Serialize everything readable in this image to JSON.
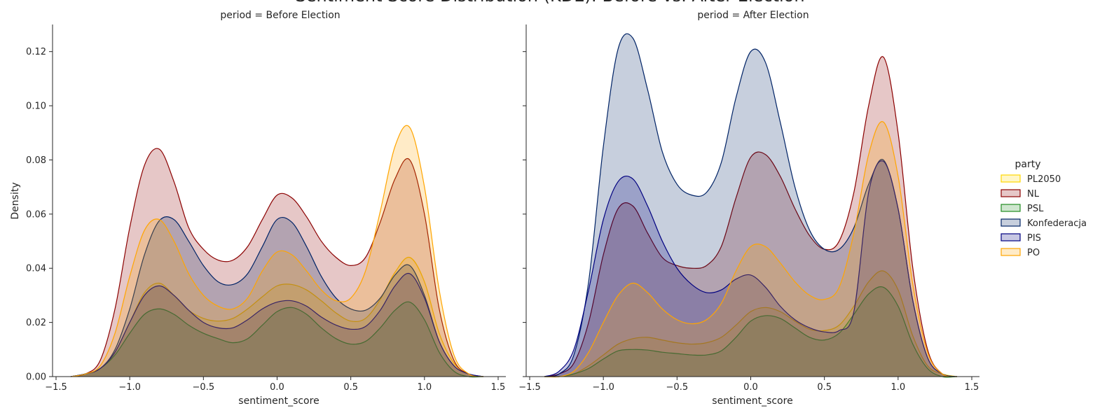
{
  "figure": {
    "title": "Sentiment Score Distribution (KDE): Before vs. After Election"
  },
  "legend": {
    "title": "party",
    "placement": "right",
    "entries": [
      {
        "name": "PL2050",
        "color": "#FFD700"
      },
      {
        "name": "NL",
        "color": "#8B0000"
      },
      {
        "name": "PSL",
        "color": "#228B22"
      },
      {
        "name": "Konfederacja",
        "color": "#002366"
      },
      {
        "name": "PIS",
        "color": "#000080"
      },
      {
        "name": "PO",
        "color": "#FFA500"
      }
    ]
  },
  "chart_data": [
    {
      "type": "area",
      "subtype": "kde",
      "title": "period = Before Election",
      "xlabel": "sentiment_score",
      "ylabel": "Density",
      "xlim": [
        -1.5,
        1.5
      ],
      "ylim": [
        0,
        0.13
      ],
      "xticks": [
        "−1.5",
        "−1.0",
        "−0.5",
        "0.0",
        "0.5",
        "1.0",
        "1.5"
      ],
      "yticks": [
        "0.00",
        "0.02",
        "0.04",
        "0.06",
        "0.08",
        "0.10",
        "0.12"
      ],
      "grid": false,
      "x": [
        -1.4,
        -1.3,
        -1.2,
        -1.1,
        -1.0,
        -0.9,
        -0.8,
        -0.7,
        -0.6,
        -0.5,
        -0.4,
        -0.3,
        -0.2,
        -0.1,
        0.0,
        0.1,
        0.2,
        0.3,
        0.4,
        0.5,
        0.6,
        0.7,
        0.8,
        0.9,
        1.0,
        1.1,
        1.2,
        1.3,
        1.4
      ],
      "series": [
        {
          "name": "PL2050",
          "color": "#FFD700",
          "values": [
            0.0,
            0.001,
            0.003,
            0.009,
            0.02,
            0.031,
            0.0345,
            0.03,
            0.0245,
            0.0215,
            0.0205,
            0.0215,
            0.025,
            0.0295,
            0.0335,
            0.034,
            0.032,
            0.028,
            0.0235,
            0.0205,
            0.0215,
            0.0285,
            0.0385,
            0.044,
            0.035,
            0.016,
            0.005,
            0.001,
            0.0
          ]
        },
        {
          "name": "NL",
          "color": "#8B0000",
          "values": [
            0.0,
            0.001,
            0.006,
            0.025,
            0.055,
            0.078,
            0.084,
            0.072,
            0.055,
            0.047,
            0.043,
            0.043,
            0.048,
            0.058,
            0.067,
            0.066,
            0.059,
            0.05,
            0.044,
            0.041,
            0.044,
            0.057,
            0.073,
            0.08,
            0.06,
            0.025,
            0.006,
            0.001,
            0.0
          ]
        },
        {
          "name": "PSL",
          "color": "#228B22",
          "values": [
            0.0,
            0.001,
            0.003,
            0.008,
            0.016,
            0.023,
            0.025,
            0.023,
            0.019,
            0.016,
            0.014,
            0.0125,
            0.014,
            0.019,
            0.024,
            0.0255,
            0.023,
            0.018,
            0.014,
            0.012,
            0.013,
            0.018,
            0.0245,
            0.0275,
            0.021,
            0.009,
            0.002,
            0.0,
            0.0
          ]
        },
        {
          "name": "Konfederacja",
          "color": "#002366",
          "values": [
            0.0,
            0.001,
            0.003,
            0.01,
            0.025,
            0.045,
            0.0575,
            0.058,
            0.05,
            0.041,
            0.035,
            0.034,
            0.038,
            0.048,
            0.058,
            0.057,
            0.048,
            0.037,
            0.029,
            0.025,
            0.0245,
            0.029,
            0.0375,
            0.041,
            0.03,
            0.013,
            0.004,
            0.001,
            0.0
          ]
        },
        {
          "name": "PIS",
          "color": "#000080",
          "values": [
            0.0,
            0.001,
            0.003,
            0.009,
            0.02,
            0.03,
            0.0335,
            0.03,
            0.0245,
            0.02,
            0.018,
            0.018,
            0.021,
            0.025,
            0.0275,
            0.028,
            0.026,
            0.022,
            0.019,
            0.0175,
            0.0185,
            0.0245,
            0.0335,
            0.038,
            0.029,
            0.013,
            0.004,
            0.001,
            0.0
          ]
        },
        {
          "name": "PO",
          "color": "#FFA500",
          "values": [
            0.0,
            0.001,
            0.004,
            0.016,
            0.037,
            0.054,
            0.058,
            0.05,
            0.038,
            0.03,
            0.026,
            0.025,
            0.029,
            0.039,
            0.046,
            0.045,
            0.039,
            0.032,
            0.028,
            0.029,
            0.039,
            0.061,
            0.085,
            0.092,
            0.07,
            0.032,
            0.008,
            0.001,
            0.0
          ]
        }
      ]
    },
    {
      "type": "area",
      "subtype": "kde",
      "title": "period = After Election",
      "xlabel": "sentiment_score",
      "ylabel": "",
      "xlim": [
        -1.5,
        1.5
      ],
      "ylim": [
        0,
        0.13
      ],
      "xticks": [
        "−1.5",
        "−1.0",
        "−0.5",
        "0.0",
        "0.5",
        "1.0",
        "1.5"
      ],
      "yticks": [],
      "grid": false,
      "x": [
        -1.4,
        -1.3,
        -1.2,
        -1.1,
        -1.0,
        -0.9,
        -0.8,
        -0.7,
        -0.6,
        -0.5,
        -0.4,
        -0.3,
        -0.2,
        -0.1,
        0.0,
        0.1,
        0.2,
        0.3,
        0.4,
        0.5,
        0.6,
        0.7,
        0.8,
        0.9,
        1.0,
        1.1,
        1.2,
        1.3,
        1.4
      ],
      "series": [
        {
          "name": "PL2050",
          "color": "#FFD700",
          "values": [
            0.0,
            0.0,
            0.001,
            0.004,
            0.008,
            0.012,
            0.014,
            0.0145,
            0.0135,
            0.0125,
            0.012,
            0.0125,
            0.0145,
            0.019,
            0.024,
            0.0255,
            0.024,
            0.0205,
            0.0175,
            0.017,
            0.019,
            0.026,
            0.035,
            0.039,
            0.032,
            0.015,
            0.004,
            0.001,
            0.0
          ]
        },
        {
          "name": "NL",
          "color": "#8B0000",
          "values": [
            0.0,
            0.001,
            0.005,
            0.02,
            0.045,
            0.062,
            0.063,
            0.053,
            0.044,
            0.041,
            0.04,
            0.041,
            0.048,
            0.066,
            0.081,
            0.082,
            0.074,
            0.062,
            0.052,
            0.047,
            0.05,
            0.068,
            0.1,
            0.118,
            0.09,
            0.04,
            0.01,
            0.001,
            0.0
          ]
        },
        {
          "name": "PSL",
          "color": "#228B22",
          "values": [
            0.0,
            0.0,
            0.001,
            0.003,
            0.0065,
            0.0095,
            0.01,
            0.0098,
            0.009,
            0.0085,
            0.008,
            0.008,
            0.0095,
            0.0145,
            0.0205,
            0.0225,
            0.0215,
            0.018,
            0.0145,
            0.0135,
            0.016,
            0.023,
            0.0305,
            0.033,
            0.026,
            0.012,
            0.003,
            0.0,
            0.0
          ]
        },
        {
          "name": "Konfederacja",
          "color": "#002366",
          "values": [
            0.0,
            0.001,
            0.008,
            0.035,
            0.085,
            0.121,
            0.125,
            0.106,
            0.083,
            0.071,
            0.067,
            0.068,
            0.079,
            0.103,
            0.12,
            0.116,
            0.094,
            0.07,
            0.054,
            0.047,
            0.047,
            0.055,
            0.071,
            0.08,
            0.062,
            0.028,
            0.007,
            0.001,
            0.0
          ]
        },
        {
          "name": "PIS",
          "color": "#000080",
          "values": [
            0.0,
            0.002,
            0.01,
            0.032,
            0.058,
            0.072,
            0.073,
            0.063,
            0.05,
            0.04,
            0.034,
            0.031,
            0.032,
            0.036,
            0.0375,
            0.033,
            0.026,
            0.021,
            0.018,
            0.0165,
            0.017,
            0.024,
            0.068,
            0.0795,
            0.062,
            0.028,
            0.007,
            0.001,
            0.0
          ]
        },
        {
          "name": "PO",
          "color": "#FFA500",
          "values": [
            0.0,
            0.0,
            0.002,
            0.009,
            0.02,
            0.03,
            0.0345,
            0.031,
            0.025,
            0.021,
            0.0195,
            0.021,
            0.027,
            0.039,
            0.048,
            0.048,
            0.042,
            0.035,
            0.03,
            0.0285,
            0.033,
            0.053,
            0.082,
            0.094,
            0.074,
            0.034,
            0.009,
            0.001,
            0.0
          ]
        }
      ]
    }
  ]
}
